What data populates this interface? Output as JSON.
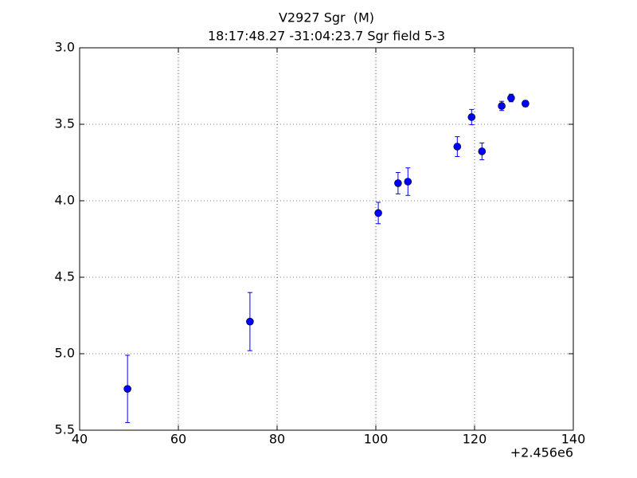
{
  "chart_data": {
    "type": "errorbar",
    "title": "V2927 Sgr  (M)",
    "subtitle": "18:17:48.27 -31:04:23.7 Sgr field 5-3",
    "x_offset_label": "+2.456e6",
    "color": "#0000ff",
    "x": [
      49.7,
      74.5,
      100.5,
      104.5,
      106.5,
      116.5,
      119.4,
      121.5,
      125.5,
      127.4,
      130.3
    ],
    "values": [
      5.23,
      4.79,
      4.08,
      3.885,
      3.875,
      3.646,
      3.453,
      3.677,
      3.38,
      3.328,
      3.365
    ],
    "errors": [
      0.22,
      0.19,
      0.07,
      0.07,
      0.09,
      0.065,
      0.05,
      0.055,
      0.03,
      0.025,
      0.02
    ],
    "xlim": [
      40,
      140
    ],
    "xticks": [
      40,
      60,
      80,
      100,
      120,
      140
    ],
    "ylim": [
      5.5,
      3
    ],
    "yticks": [
      {
        "value": 3,
        "label": "3.0"
      },
      {
        "value": 3.5,
        "label": "3.5"
      },
      {
        "value": 4,
        "label": "4.0"
      },
      {
        "value": 4.5,
        "label": "4.5"
      },
      {
        "value": 5,
        "label": "5.0"
      },
      {
        "value": 5.5,
        "label": "5.5"
      }
    ],
    "grid": true
  }
}
